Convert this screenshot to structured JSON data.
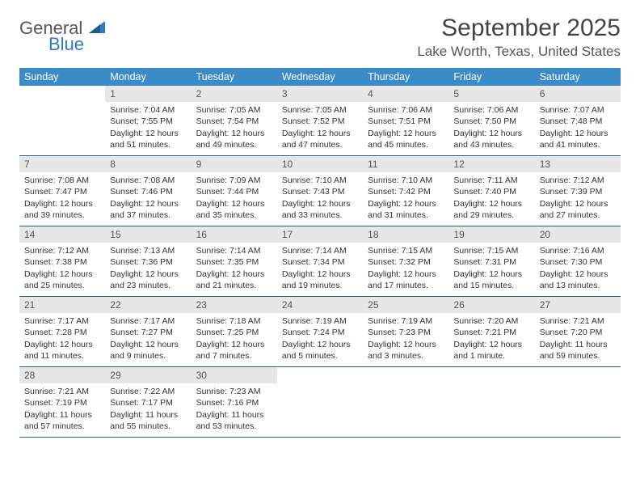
{
  "brand": {
    "word1": "General",
    "word2": "Blue"
  },
  "title": "September 2025",
  "location": "Lake Worth, Texas, United States",
  "colors": {
    "header_bg": "#3b8bc9",
    "header_text": "#ffffff",
    "daynum_bg": "#e6e6e6",
    "week_border": "#2b5f86",
    "brand_blue": "#2f7bbf",
    "text": "#333333"
  },
  "day_headers": [
    "Sunday",
    "Monday",
    "Tuesday",
    "Wednesday",
    "Thursday",
    "Friday",
    "Saturday"
  ],
  "weeks": [
    [
      null,
      {
        "n": "1",
        "sr": "Sunrise: 7:04 AM",
        "ss": "Sunset: 7:55 PM",
        "dl": "Daylight: 12 hours and 51 minutes."
      },
      {
        "n": "2",
        "sr": "Sunrise: 7:05 AM",
        "ss": "Sunset: 7:54 PM",
        "dl": "Daylight: 12 hours and 49 minutes."
      },
      {
        "n": "3",
        "sr": "Sunrise: 7:05 AM",
        "ss": "Sunset: 7:52 PM",
        "dl": "Daylight: 12 hours and 47 minutes."
      },
      {
        "n": "4",
        "sr": "Sunrise: 7:06 AM",
        "ss": "Sunset: 7:51 PM",
        "dl": "Daylight: 12 hours and 45 minutes."
      },
      {
        "n": "5",
        "sr": "Sunrise: 7:06 AM",
        "ss": "Sunset: 7:50 PM",
        "dl": "Daylight: 12 hours and 43 minutes."
      },
      {
        "n": "6",
        "sr": "Sunrise: 7:07 AM",
        "ss": "Sunset: 7:48 PM",
        "dl": "Daylight: 12 hours and 41 minutes."
      }
    ],
    [
      {
        "n": "7",
        "sr": "Sunrise: 7:08 AM",
        "ss": "Sunset: 7:47 PM",
        "dl": "Daylight: 12 hours and 39 minutes."
      },
      {
        "n": "8",
        "sr": "Sunrise: 7:08 AM",
        "ss": "Sunset: 7:46 PM",
        "dl": "Daylight: 12 hours and 37 minutes."
      },
      {
        "n": "9",
        "sr": "Sunrise: 7:09 AM",
        "ss": "Sunset: 7:44 PM",
        "dl": "Daylight: 12 hours and 35 minutes."
      },
      {
        "n": "10",
        "sr": "Sunrise: 7:10 AM",
        "ss": "Sunset: 7:43 PM",
        "dl": "Daylight: 12 hours and 33 minutes."
      },
      {
        "n": "11",
        "sr": "Sunrise: 7:10 AM",
        "ss": "Sunset: 7:42 PM",
        "dl": "Daylight: 12 hours and 31 minutes."
      },
      {
        "n": "12",
        "sr": "Sunrise: 7:11 AM",
        "ss": "Sunset: 7:40 PM",
        "dl": "Daylight: 12 hours and 29 minutes."
      },
      {
        "n": "13",
        "sr": "Sunrise: 7:12 AM",
        "ss": "Sunset: 7:39 PM",
        "dl": "Daylight: 12 hours and 27 minutes."
      }
    ],
    [
      {
        "n": "14",
        "sr": "Sunrise: 7:12 AM",
        "ss": "Sunset: 7:38 PM",
        "dl": "Daylight: 12 hours and 25 minutes."
      },
      {
        "n": "15",
        "sr": "Sunrise: 7:13 AM",
        "ss": "Sunset: 7:36 PM",
        "dl": "Daylight: 12 hours and 23 minutes."
      },
      {
        "n": "16",
        "sr": "Sunrise: 7:14 AM",
        "ss": "Sunset: 7:35 PM",
        "dl": "Daylight: 12 hours and 21 minutes."
      },
      {
        "n": "17",
        "sr": "Sunrise: 7:14 AM",
        "ss": "Sunset: 7:34 PM",
        "dl": "Daylight: 12 hours and 19 minutes."
      },
      {
        "n": "18",
        "sr": "Sunrise: 7:15 AM",
        "ss": "Sunset: 7:32 PM",
        "dl": "Daylight: 12 hours and 17 minutes."
      },
      {
        "n": "19",
        "sr": "Sunrise: 7:15 AM",
        "ss": "Sunset: 7:31 PM",
        "dl": "Daylight: 12 hours and 15 minutes."
      },
      {
        "n": "20",
        "sr": "Sunrise: 7:16 AM",
        "ss": "Sunset: 7:30 PM",
        "dl": "Daylight: 12 hours and 13 minutes."
      }
    ],
    [
      {
        "n": "21",
        "sr": "Sunrise: 7:17 AM",
        "ss": "Sunset: 7:28 PM",
        "dl": "Daylight: 12 hours and 11 minutes."
      },
      {
        "n": "22",
        "sr": "Sunrise: 7:17 AM",
        "ss": "Sunset: 7:27 PM",
        "dl": "Daylight: 12 hours and 9 minutes."
      },
      {
        "n": "23",
        "sr": "Sunrise: 7:18 AM",
        "ss": "Sunset: 7:25 PM",
        "dl": "Daylight: 12 hours and 7 minutes."
      },
      {
        "n": "24",
        "sr": "Sunrise: 7:19 AM",
        "ss": "Sunset: 7:24 PM",
        "dl": "Daylight: 12 hours and 5 minutes."
      },
      {
        "n": "25",
        "sr": "Sunrise: 7:19 AM",
        "ss": "Sunset: 7:23 PM",
        "dl": "Daylight: 12 hours and 3 minutes."
      },
      {
        "n": "26",
        "sr": "Sunrise: 7:20 AM",
        "ss": "Sunset: 7:21 PM",
        "dl": "Daylight: 12 hours and 1 minute."
      },
      {
        "n": "27",
        "sr": "Sunrise: 7:21 AM",
        "ss": "Sunset: 7:20 PM",
        "dl": "Daylight: 11 hours and 59 minutes."
      }
    ],
    [
      {
        "n": "28",
        "sr": "Sunrise: 7:21 AM",
        "ss": "Sunset: 7:19 PM",
        "dl": "Daylight: 11 hours and 57 minutes."
      },
      {
        "n": "29",
        "sr": "Sunrise: 7:22 AM",
        "ss": "Sunset: 7:17 PM",
        "dl": "Daylight: 11 hours and 55 minutes."
      },
      {
        "n": "30",
        "sr": "Sunrise: 7:23 AM",
        "ss": "Sunset: 7:16 PM",
        "dl": "Daylight: 11 hours and 53 minutes."
      },
      null,
      null,
      null,
      null
    ]
  ]
}
